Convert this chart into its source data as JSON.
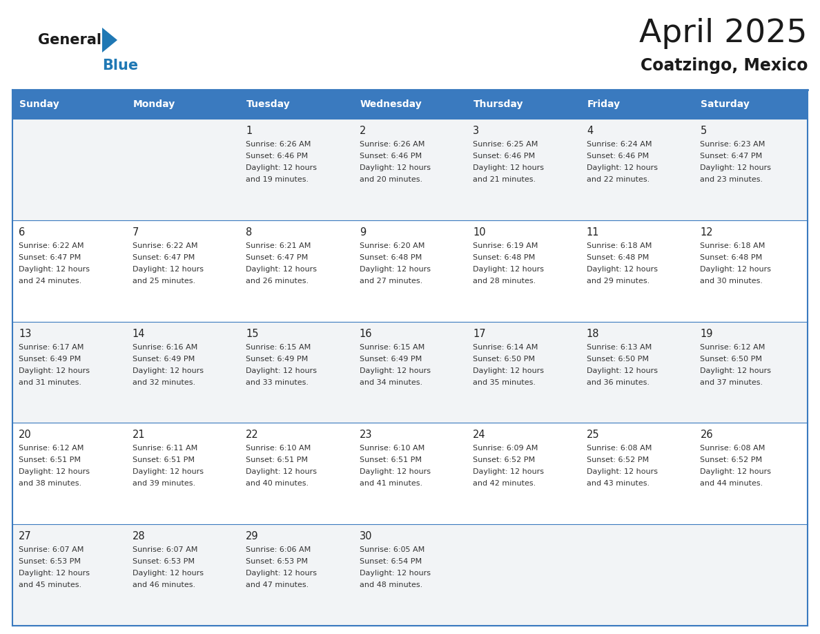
{
  "title": "April 2025",
  "subtitle": "Coatzingo, Mexico",
  "days_of_week": [
    "Sunday",
    "Monday",
    "Tuesday",
    "Wednesday",
    "Thursday",
    "Friday",
    "Saturday"
  ],
  "header_bg_color": "#3A7ABF",
  "header_text_color": "#FFFFFF",
  "cell_bg_row0": "#F2F4F6",
  "cell_bg_row1": "#FFFFFF",
  "border_color": "#3A7ABF",
  "title_color": "#1a1a1a",
  "subtitle_color": "#1a1a1a",
  "general_color": "#1a1a1a",
  "blue_color": "#1F78B4",
  "logo_black": "#1a1a1a",
  "separator_color": "#3A7ABF",
  "calendar_data": [
    [
      null,
      null,
      {
        "day": 1,
        "sunrise": "6:26 AM",
        "sunset": "6:46 PM",
        "minutes": "19"
      },
      {
        "day": 2,
        "sunrise": "6:26 AM",
        "sunset": "6:46 PM",
        "minutes": "20"
      },
      {
        "day": 3,
        "sunrise": "6:25 AM",
        "sunset": "6:46 PM",
        "minutes": "21"
      },
      {
        "day": 4,
        "sunrise": "6:24 AM",
        "sunset": "6:46 PM",
        "minutes": "22"
      },
      {
        "day": 5,
        "sunrise": "6:23 AM",
        "sunset": "6:47 PM",
        "minutes": "23"
      }
    ],
    [
      {
        "day": 6,
        "sunrise": "6:22 AM",
        "sunset": "6:47 PM",
        "minutes": "24"
      },
      {
        "day": 7,
        "sunrise": "6:22 AM",
        "sunset": "6:47 PM",
        "minutes": "25"
      },
      {
        "day": 8,
        "sunrise": "6:21 AM",
        "sunset": "6:47 PM",
        "minutes": "26"
      },
      {
        "day": 9,
        "sunrise": "6:20 AM",
        "sunset": "6:48 PM",
        "minutes": "27"
      },
      {
        "day": 10,
        "sunrise": "6:19 AM",
        "sunset": "6:48 PM",
        "minutes": "28"
      },
      {
        "day": 11,
        "sunrise": "6:18 AM",
        "sunset": "6:48 PM",
        "minutes": "29"
      },
      {
        "day": 12,
        "sunrise": "6:18 AM",
        "sunset": "6:48 PM",
        "minutes": "30"
      }
    ],
    [
      {
        "day": 13,
        "sunrise": "6:17 AM",
        "sunset": "6:49 PM",
        "minutes": "31"
      },
      {
        "day": 14,
        "sunrise": "6:16 AM",
        "sunset": "6:49 PM",
        "minutes": "32"
      },
      {
        "day": 15,
        "sunrise": "6:15 AM",
        "sunset": "6:49 PM",
        "minutes": "33"
      },
      {
        "day": 16,
        "sunrise": "6:15 AM",
        "sunset": "6:49 PM",
        "minutes": "34"
      },
      {
        "day": 17,
        "sunrise": "6:14 AM",
        "sunset": "6:50 PM",
        "minutes": "35"
      },
      {
        "day": 18,
        "sunrise": "6:13 AM",
        "sunset": "6:50 PM",
        "minutes": "36"
      },
      {
        "day": 19,
        "sunrise": "6:12 AM",
        "sunset": "6:50 PM",
        "minutes": "37"
      }
    ],
    [
      {
        "day": 20,
        "sunrise": "6:12 AM",
        "sunset": "6:51 PM",
        "minutes": "38"
      },
      {
        "day": 21,
        "sunrise": "6:11 AM",
        "sunset": "6:51 PM",
        "minutes": "39"
      },
      {
        "day": 22,
        "sunrise": "6:10 AM",
        "sunset": "6:51 PM",
        "minutes": "40"
      },
      {
        "day": 23,
        "sunrise": "6:10 AM",
        "sunset": "6:51 PM",
        "minutes": "41"
      },
      {
        "day": 24,
        "sunrise": "6:09 AM",
        "sunset": "6:52 PM",
        "minutes": "42"
      },
      {
        "day": 25,
        "sunrise": "6:08 AM",
        "sunset": "6:52 PM",
        "minutes": "43"
      },
      {
        "day": 26,
        "sunrise": "6:08 AM",
        "sunset": "6:52 PM",
        "minutes": "44"
      }
    ],
    [
      {
        "day": 27,
        "sunrise": "6:07 AM",
        "sunset": "6:53 PM",
        "minutes": "45"
      },
      {
        "day": 28,
        "sunrise": "6:07 AM",
        "sunset": "6:53 PM",
        "minutes": "46"
      },
      {
        "day": 29,
        "sunrise": "6:06 AM",
        "sunset": "6:53 PM",
        "minutes": "47"
      },
      {
        "day": 30,
        "sunrise": "6:05 AM",
        "sunset": "6:54 PM",
        "minutes": "48"
      },
      null,
      null,
      null
    ]
  ]
}
